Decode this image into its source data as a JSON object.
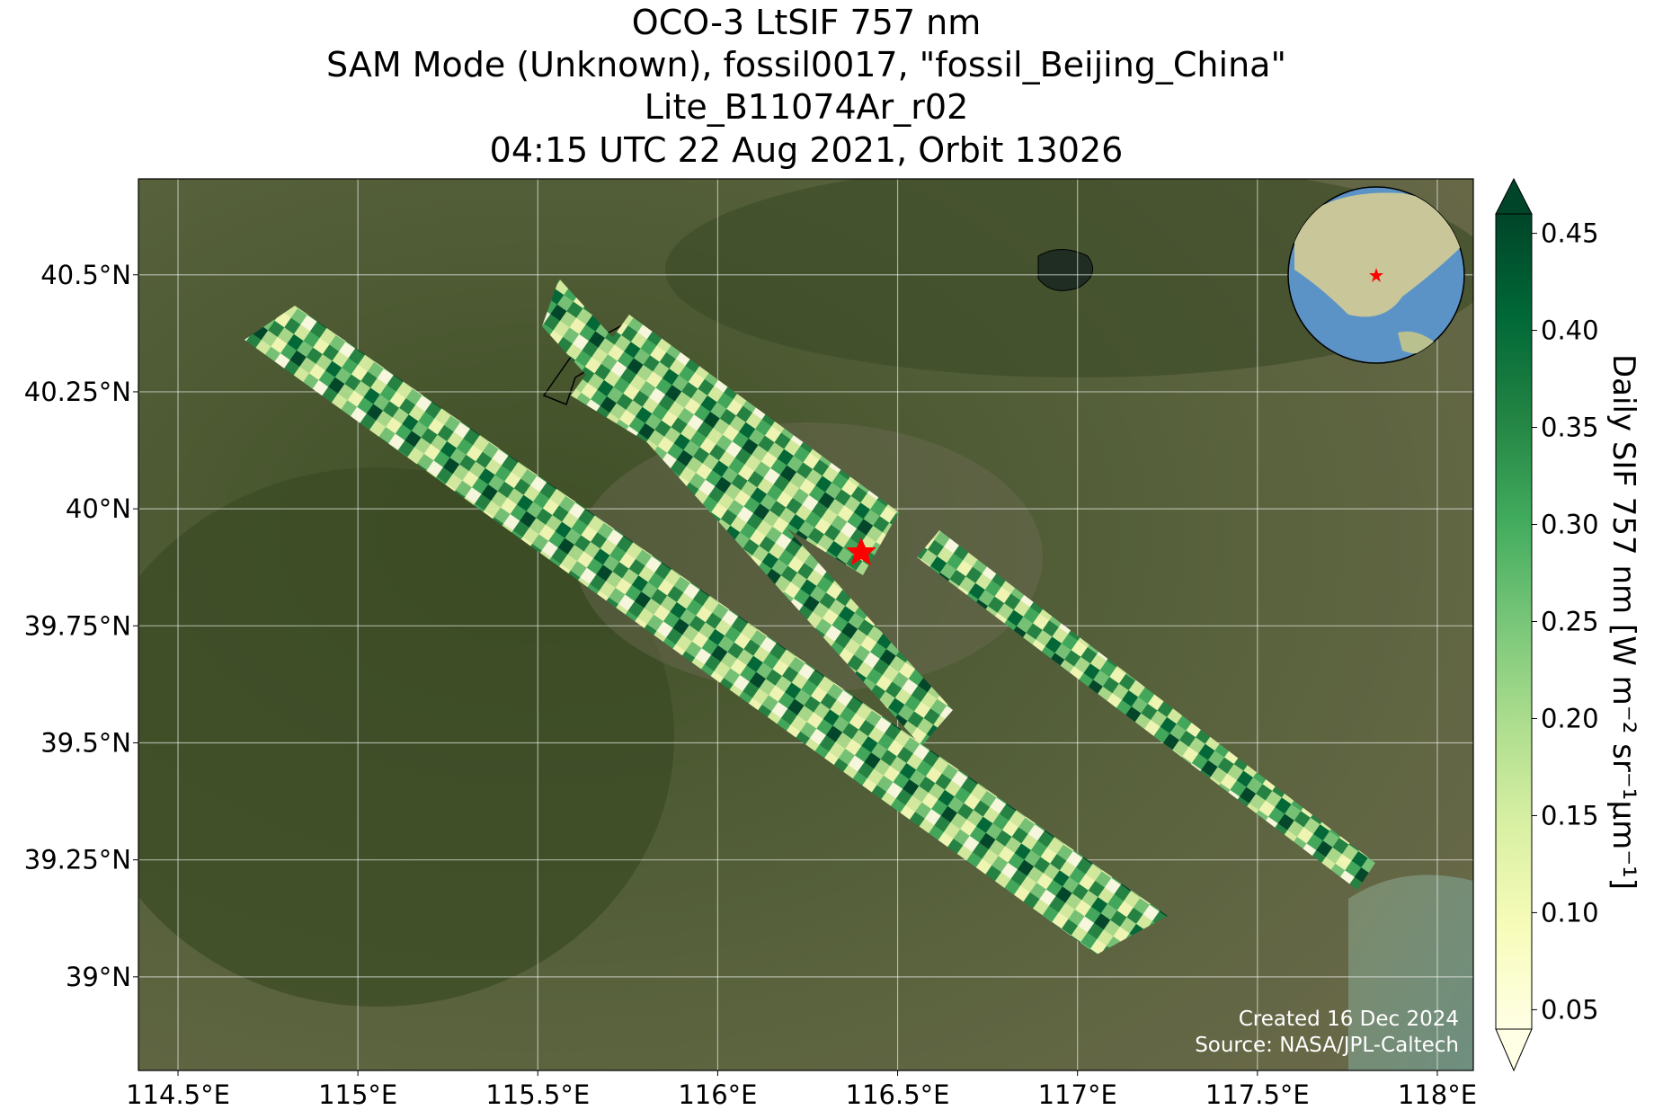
{
  "title": [
    "OCO-3 LtSIF 757 nm",
    "SAM Mode (Unknown), fossil0017, \"fossil_Beijing_China\"",
    "Lite_B11074Ar_r02",
    "04:15 UTC 22 Aug 2021, Orbit 13026"
  ],
  "map": {
    "xlim": [
      114.39,
      118.1
    ],
    "ylim": [
      38.8,
      40.705
    ],
    "grid": true,
    "xticks": [
      {
        "value": 114.5,
        "label": "114.5°E"
      },
      {
        "value": 115,
        "label": "115°E"
      },
      {
        "value": 115.5,
        "label": "115.5°E"
      },
      {
        "value": 116,
        "label": "116°E"
      },
      {
        "value": 116.5,
        "label": "116.5°E"
      },
      {
        "value": 117,
        "label": "117°E"
      },
      {
        "value": 117.5,
        "label": "117.5°E"
      },
      {
        "value": 118,
        "label": "118°E"
      }
    ],
    "yticks": [
      {
        "value": 39,
        "label": "39°N"
      },
      {
        "value": 39.25,
        "label": "39.25°N"
      },
      {
        "value": 39.5,
        "label": "39.5°N"
      },
      {
        "value": 39.75,
        "label": "39.75°N"
      },
      {
        "value": 40,
        "label": "40°N"
      },
      {
        "value": 40.25,
        "label": "40.25°N"
      },
      {
        "value": 40.5,
        "label": "40.5°N"
      }
    ]
  },
  "colorbar": {
    "label": "Daily SIF 757 nm [W m⁻² sr⁻¹μm⁻¹]",
    "clim": [
      0.04,
      0.46
    ],
    "colors": [
      "#ffffe5",
      "#f7fcb9",
      "#d9f0a3",
      "#addd8e",
      "#78c679",
      "#41ab5d",
      "#238443",
      "#006837",
      "#004529"
    ],
    "ticks": [
      0.05,
      {
        "value": 0.1,
        "label": "0.10"
      },
      0.15,
      {
        "value": 0.2,
        "label": "0.20"
      },
      0.25,
      {
        "value": 0.3,
        "label": "0.30"
      },
      0.35,
      {
        "value": 0.4,
        "label": "0.40"
      },
      0.45
    ]
  },
  "credits": [
    "Created 16 Dec 2024",
    "Source: NASA/JPL-Caltech"
  ]
}
